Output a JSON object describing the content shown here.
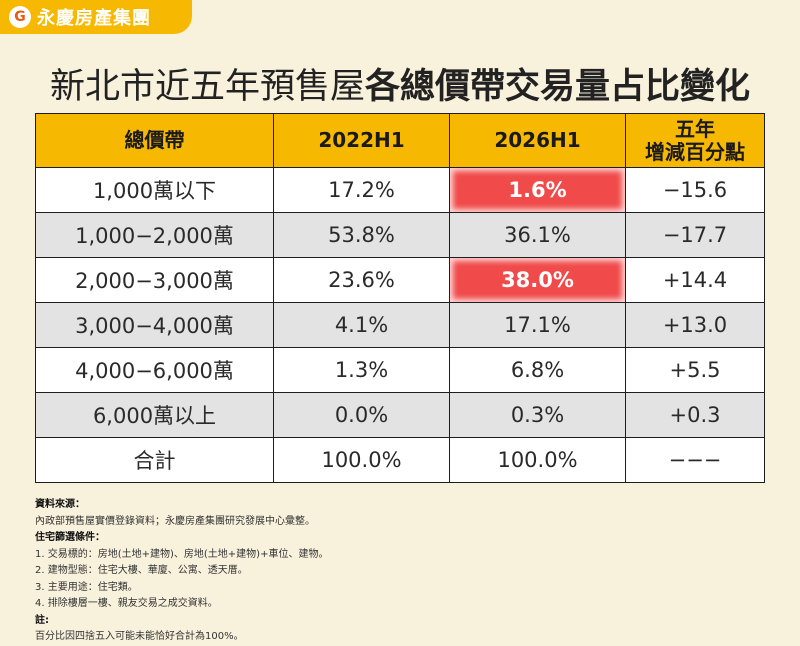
{
  "brand": {
    "logo_glyph": "G",
    "name": "永慶房產集團",
    "color": "#f6b800"
  },
  "title": {
    "part1": "新北市近五年預售屋",
    "part2": "各總價帶交易量占比變化"
  },
  "table": {
    "headers": [
      "總價帶",
      "2022H1",
      "2026H1",
      "五年",
      "增減百分點"
    ],
    "rows": [
      {
        "band": "1,000萬以下",
        "y2022": "17.2%",
        "y2026": "1.6%",
        "change": "−15.6",
        "highlight": true
      },
      {
        "band": "1,000−2,000萬",
        "y2022": "53.8%",
        "y2026": "36.1%",
        "change": "−17.7",
        "highlight": false
      },
      {
        "band": "2,000−3,000萬",
        "y2022": "23.6%",
        "y2026": "38.0%",
        "change": "+14.4",
        "highlight": true
      },
      {
        "band": "3,000−4,000萬",
        "y2022": "4.1%",
        "y2026": "17.1%",
        "change": "+13.0",
        "highlight": false
      },
      {
        "band": "4,000−6,000萬",
        "y2022": "1.3%",
        "y2026": "6.8%",
        "change": "+5.5",
        "highlight": false
      },
      {
        "band": "6,000萬以上",
        "y2022": "0.0%",
        "y2026": "0.3%",
        "change": "+0.3",
        "highlight": false
      },
      {
        "band": "合計",
        "y2022": "100.0%",
        "y2026": "100.0%",
        "change": "−−−",
        "highlight": false
      }
    ],
    "highlight_color": "#f04a4a"
  },
  "notes": {
    "source_heading": "資料來源：",
    "source_text": "內政部預售屋實價登錄資料；永慶房產集團研究發展中心彙整。",
    "criteria_heading": "住宅篩選條件：",
    "criteria": [
      "1. 交易標的：房地(土地+建物)、房地(土地+建物)+車位、建物。",
      "2. 建物型態：住宅大樓、華廈、公寓、透天厝。",
      "3. 主要用途：住宅類。",
      "4. 排除樓層一樓、親友交易之成交資料。"
    ],
    "note_heading": "註:",
    "note_text": "百分比因四捨五入可能未能恰好合計為100%。"
  }
}
